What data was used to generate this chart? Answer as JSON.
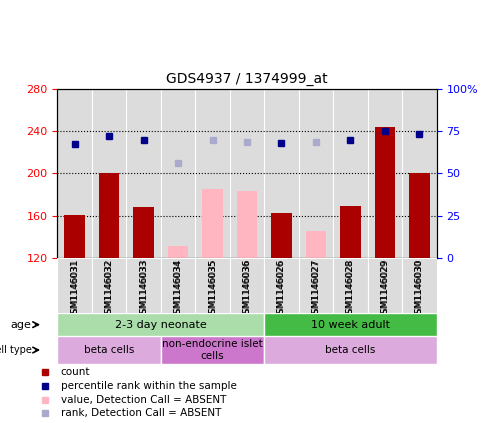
{
  "title": "GDS4937 / 1374999_at",
  "samples": [
    "GSM1146031",
    "GSM1146032",
    "GSM1146033",
    "GSM1146034",
    "GSM1146035",
    "GSM1146036",
    "GSM1146026",
    "GSM1146027",
    "GSM1146028",
    "GSM1146029",
    "GSM1146030"
  ],
  "bar_values": [
    161,
    200,
    168,
    null,
    null,
    null,
    163,
    null,
    169,
    244,
    200
  ],
  "bar_colors_present": "#AA0000",
  "bar_colors_absent": "#FFB6C1",
  "absent_bar_values": [
    null,
    null,
    null,
    131,
    185,
    183,
    null,
    146,
    null,
    null,
    null
  ],
  "dot_values_present": [
    228,
    235,
    232,
    null,
    null,
    null,
    229,
    null,
    232,
    240,
    237
  ],
  "dot_values_absent": [
    null,
    null,
    null,
    210,
    232,
    230,
    null,
    230,
    null,
    null,
    null
  ],
  "dot_color_present": "#00008B",
  "dot_color_absent": "#AAAACC",
  "ylim_left": [
    120,
    280
  ],
  "ylim_right": [
    0,
    100
  ],
  "yticks_left": [
    120,
    160,
    200,
    240,
    280
  ],
  "yticks_right": [
    0,
    25,
    50,
    75,
    100
  ],
  "ytick_labels_right": [
    "0",
    "25",
    "50",
    "75",
    "100%"
  ],
  "hlines": [
    160,
    200,
    240
  ],
  "age_groups": [
    {
      "label": "2-3 day neonate",
      "start": 0,
      "end": 6,
      "color": "#AADDAA"
    },
    {
      "label": "10 week adult",
      "start": 6,
      "end": 11,
      "color": "#44BB44"
    }
  ],
  "cell_type_groups": [
    {
      "label": "beta cells",
      "start": 0,
      "end": 3,
      "color": "#DDAADD"
    },
    {
      "label": "non-endocrine islet\ncells",
      "start": 3,
      "end": 6,
      "color": "#CC77CC"
    },
    {
      "label": "beta cells",
      "start": 6,
      "end": 11,
      "color": "#DDAADD"
    }
  ],
  "legend_items": [
    {
      "color": "#AA0000",
      "label": "count"
    },
    {
      "color": "#00008B",
      "label": "percentile rank within the sample"
    },
    {
      "color": "#FFB6C1",
      "label": "value, Detection Call = ABSENT"
    },
    {
      "color": "#AAAACC",
      "label": "rank, Detection Call = ABSENT"
    }
  ],
  "bar_width": 0.6,
  "background_color": "#DCDCDC"
}
